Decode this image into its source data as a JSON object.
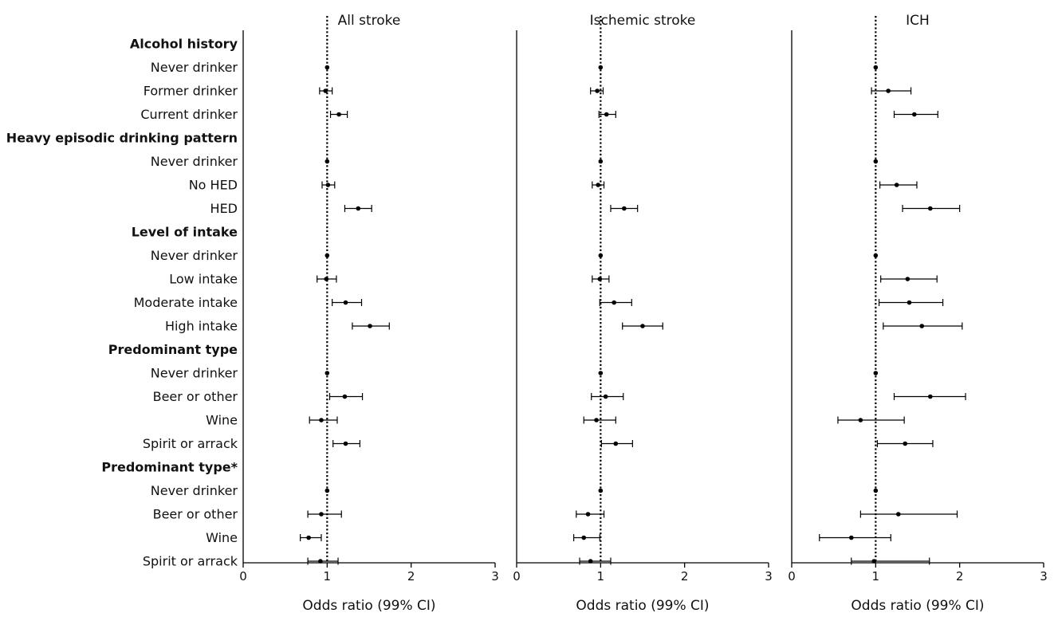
{
  "chart_data": {
    "type": "forest",
    "rows": [
      {
        "label": "Alcohol history",
        "header": true
      },
      {
        "label": "Never drinker"
      },
      {
        "label": "Former drinker"
      },
      {
        "label": "Current drinker"
      },
      {
        "label": "Heavy episodic drinking pattern",
        "header": true
      },
      {
        "label": "Never drinker"
      },
      {
        "label": "No HED"
      },
      {
        "label": "HED"
      },
      {
        "label": "Level of intake",
        "header": true
      },
      {
        "label": "Never drinker"
      },
      {
        "label": "Low intake"
      },
      {
        "label": "Moderate intake"
      },
      {
        "label": "High intake"
      },
      {
        "label": "Predominant type",
        "header": true
      },
      {
        "label": "Never drinker"
      },
      {
        "label": "Beer or other"
      },
      {
        "label": "Wine"
      },
      {
        "label": "Spirit or arrack"
      },
      {
        "label": "Predominant type*",
        "header": true
      },
      {
        "label": "Never drinker"
      },
      {
        "label": "Beer or other"
      },
      {
        "label": "Wine"
      },
      {
        "label": "Spirit or arrack"
      }
    ],
    "panels": [
      {
        "title": "All stroke",
        "xlabel": "Odds ratio (99% CI)",
        "xlim": [
          0,
          3
        ],
        "ticks": [
          "0",
          "1",
          "2",
          "3"
        ],
        "reference_line": 1,
        "estimates": [
          null,
          [
            1.0,
            1.0,
            1.0
          ],
          [
            0.98,
            0.91,
            1.06
          ],
          [
            1.14,
            1.04,
            1.24
          ],
          null,
          [
            1.0,
            1.0,
            1.0
          ],
          [
            1.01,
            0.94,
            1.09
          ],
          [
            1.37,
            1.21,
            1.53
          ],
          null,
          [
            1.0,
            1.0,
            1.0
          ],
          [
            0.99,
            0.88,
            1.11
          ],
          [
            1.22,
            1.06,
            1.41
          ],
          [
            1.51,
            1.3,
            1.74
          ],
          null,
          [
            1.0,
            1.0,
            1.0
          ],
          [
            1.21,
            1.03,
            1.42
          ],
          [
            0.93,
            0.79,
            1.12
          ],
          [
            1.22,
            1.07,
            1.39
          ],
          null,
          [
            1.0,
            1.0,
            1.0
          ],
          [
            0.93,
            0.77,
            1.17
          ],
          [
            0.78,
            0.68,
            0.93
          ],
          [
            0.92,
            0.77,
            1.13
          ]
        ]
      },
      {
        "title": "Ischemic stroke",
        "xlabel": "Odds ratio (99% CI)",
        "xlim": [
          0,
          3
        ],
        "ticks": [
          "0",
          "1",
          "2",
          "3"
        ],
        "reference_line": 1,
        "estimates": [
          null,
          [
            1.0,
            1.0,
            1.0
          ],
          [
            0.96,
            0.88,
            1.03
          ],
          [
            1.07,
            0.98,
            1.18
          ],
          null,
          [
            1.0,
            1.0,
            1.0
          ],
          [
            0.97,
            0.9,
            1.04
          ],
          [
            1.28,
            1.12,
            1.44
          ],
          null,
          [
            1.0,
            1.0,
            1.0
          ],
          [
            0.99,
            0.9,
            1.1
          ],
          [
            1.16,
            0.99,
            1.37
          ],
          [
            1.5,
            1.26,
            1.74
          ],
          null,
          [
            1.0,
            1.0,
            1.0
          ],
          [
            1.06,
            0.89,
            1.27
          ],
          [
            0.95,
            0.8,
            1.18
          ],
          [
            1.18,
            1.01,
            1.38
          ],
          null,
          [
            1.0,
            1.0,
            1.0
          ],
          [
            0.85,
            0.71,
            1.04
          ],
          [
            0.8,
            0.68,
            0.99
          ],
          [
            0.88,
            0.75,
            1.12
          ]
        ]
      },
      {
        "title": "ICH",
        "xlabel": "Odds ratio (99% CI)",
        "xlim": [
          0,
          3
        ],
        "ticks": [
          "0",
          "1",
          "2",
          "3"
        ],
        "reference_line": 1,
        "estimates": [
          null,
          [
            1.0,
            1.0,
            1.0
          ],
          [
            1.15,
            0.95,
            1.42
          ],
          [
            1.46,
            1.22,
            1.74
          ],
          null,
          [
            1.0,
            1.0,
            1.0
          ],
          [
            1.25,
            1.05,
            1.49
          ],
          [
            1.65,
            1.32,
            2.0
          ],
          null,
          [
            1.0,
            1.0,
            1.0
          ],
          [
            1.38,
            1.06,
            1.73
          ],
          [
            1.4,
            1.04,
            1.8
          ],
          [
            1.55,
            1.09,
            2.03
          ],
          null,
          [
            1.0,
            1.0,
            1.0
          ],
          [
            1.65,
            1.22,
            2.07
          ],
          [
            0.82,
            0.55,
            1.34
          ],
          [
            1.35,
            1.02,
            1.68
          ],
          null,
          [
            1.0,
            1.0,
            1.0
          ],
          [
            1.27,
            0.82,
            1.97
          ],
          [
            0.71,
            0.33,
            1.18
          ],
          [
            0.98,
            0.71,
            1.64
          ]
        ]
      }
    ]
  }
}
